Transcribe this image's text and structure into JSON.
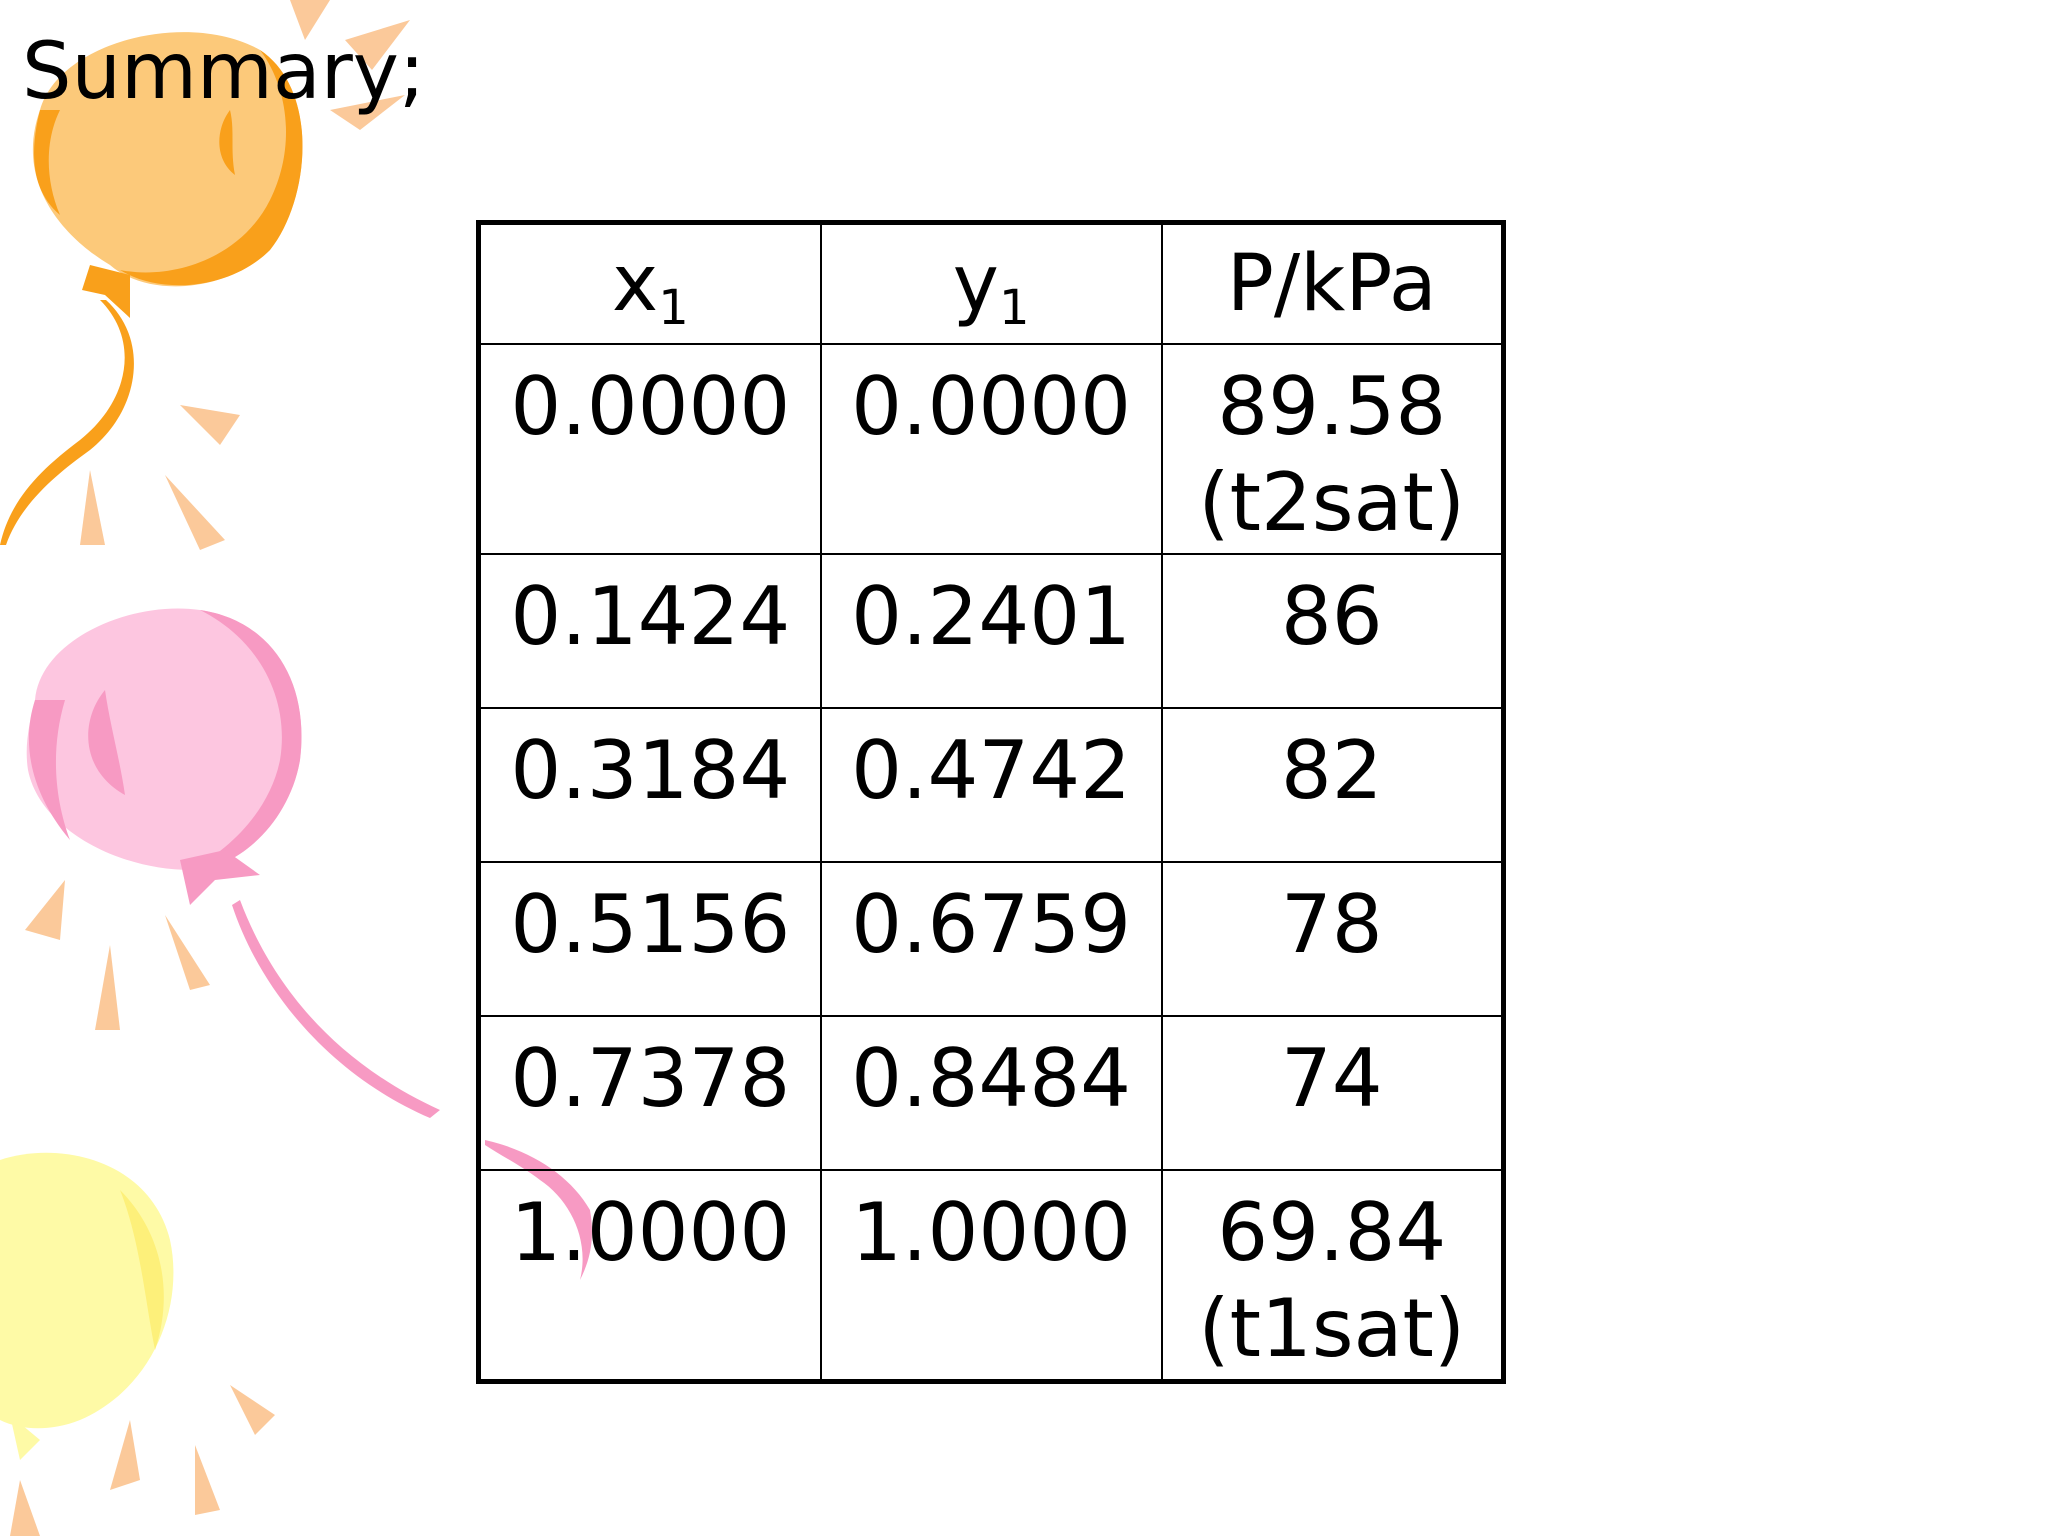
{
  "slide": {
    "title": "Summary;"
  },
  "table": {
    "headers": [
      {
        "base": "x",
        "sub": "1"
      },
      {
        "base": "y",
        "sub": "1"
      },
      {
        "base": "P/kPa",
        "sub": ""
      }
    ],
    "rows": [
      {
        "x1": "0.0000",
        "y1": "0.0000",
        "p": "89.58",
        "note": "(t2sat)"
      },
      {
        "x1": "0.1424",
        "y1": "0.2401",
        "p": "86",
        "note": ""
      },
      {
        "x1": "0.3184",
        "y1": "0.4742",
        "p": "82",
        "note": ""
      },
      {
        "x1": "0.5156",
        "y1": "0.6759",
        "p": "78",
        "note": ""
      },
      {
        "x1": "0.7378",
        "y1": "0.8484",
        "p": "74",
        "note": ""
      },
      {
        "x1": "1.0000",
        "y1": "1.0000",
        "p": "69.84",
        "note": "(t1sat)"
      }
    ]
  },
  "decor": {
    "balloon_colors": {
      "orange": "#f9a01b",
      "orange_fill": "#fcc97a",
      "pink": "#f79ac3",
      "pink_fill": "#fdc6e0",
      "yellow_fill": "#fefaa6",
      "ray": "#fbc99a"
    }
  }
}
